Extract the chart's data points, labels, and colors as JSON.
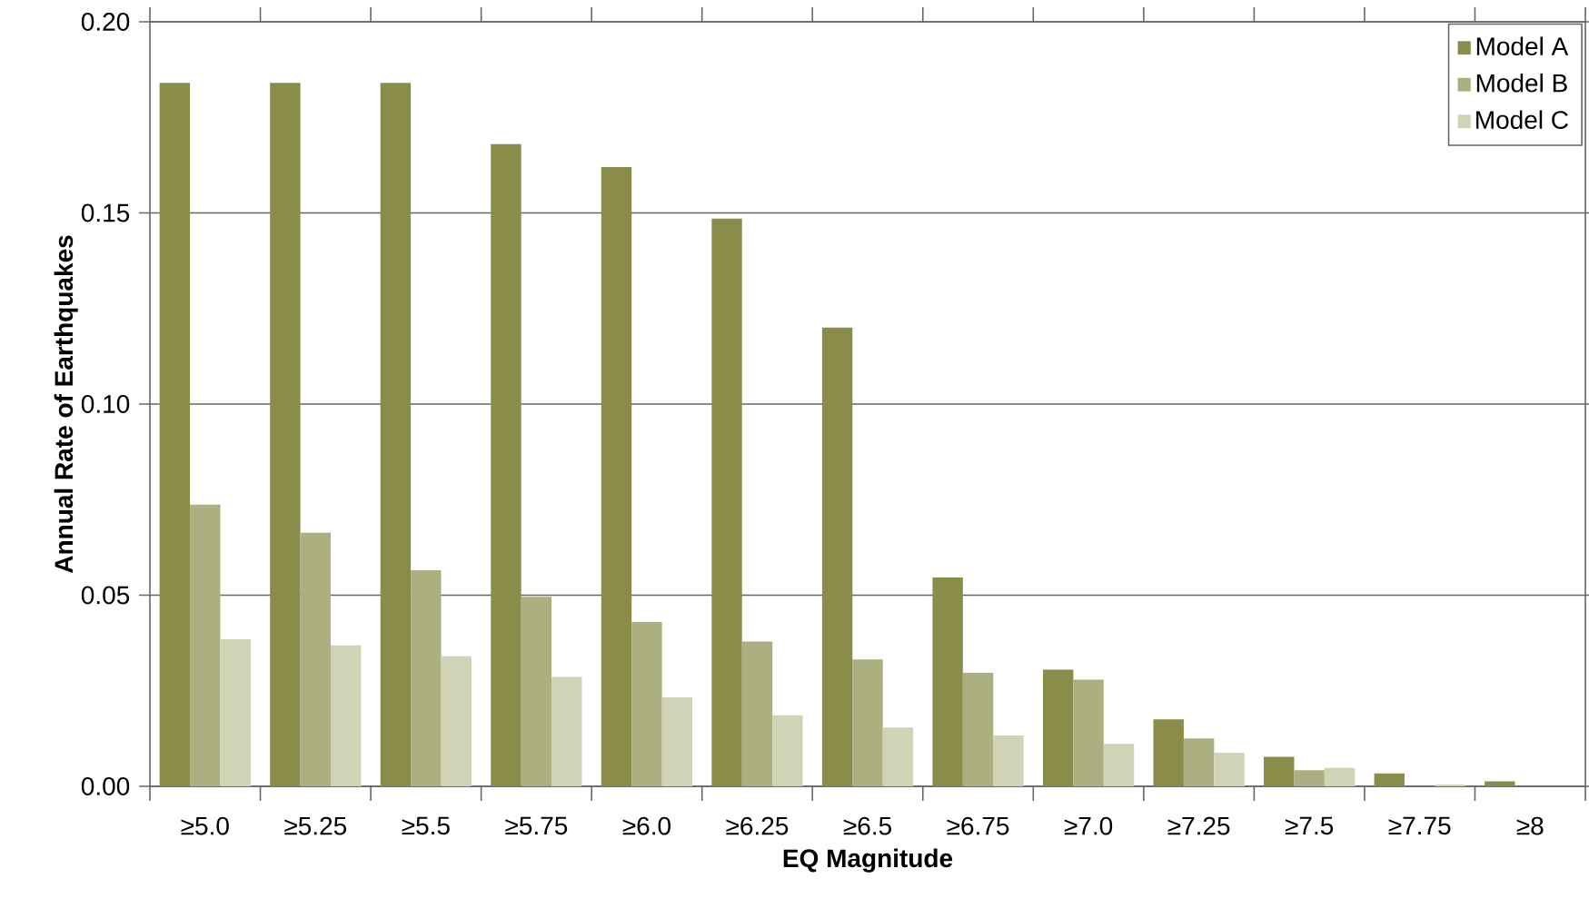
{
  "chart_data": {
    "type": "bar",
    "xlabel": "EQ Magnitude",
    "ylabel": "Annual Rate of Earthquakes",
    "categories": [
      "≥5.0",
      "≥5.25",
      "≥5.5",
      "≥5.75",
      "≥6.0",
      "≥6.25",
      "≥6.5",
      "≥6.75",
      "≥7.0",
      "≥7.25",
      "≥7.5",
      "≥7.75",
      "≥8"
    ],
    "series": [
      {
        "name": "Model A",
        "color": "#8a8c4a",
        "values": [
          0.184,
          0.184,
          0.184,
          0.168,
          0.162,
          0.1485,
          0.12,
          0.0546,
          0.0305,
          0.0175,
          0.0077,
          0.0034,
          0.0013
        ]
      },
      {
        "name": "Model B",
        "color": "#acaf80",
        "values": [
          0.0737,
          0.0663,
          0.0565,
          0.0496,
          0.043,
          0.0379,
          0.0332,
          0.0297,
          0.0279,
          0.0125,
          0.0042,
          0,
          0
        ]
      },
      {
        "name": "Model C",
        "color": "#d1d3b7",
        "values": [
          0.0385,
          0.0369,
          0.034,
          0.0286,
          0.0233,
          0.0186,
          0.0154,
          0.0133,
          0.0111,
          0.0088,
          0.0048,
          0.0005,
          0
        ]
      }
    ],
    "ylim": [
      0,
      0.2
    ],
    "yticks": [
      {
        "value": 0,
        "label": "0.00"
      },
      {
        "value": 0.05,
        "label": "0.05"
      },
      {
        "value": 0.1,
        "label": "0.10"
      },
      {
        "value": 0.15,
        "label": "0.15"
      },
      {
        "value": 0.2,
        "label": "0.20"
      }
    ],
    "grid": "y",
    "legend": "top right"
  }
}
